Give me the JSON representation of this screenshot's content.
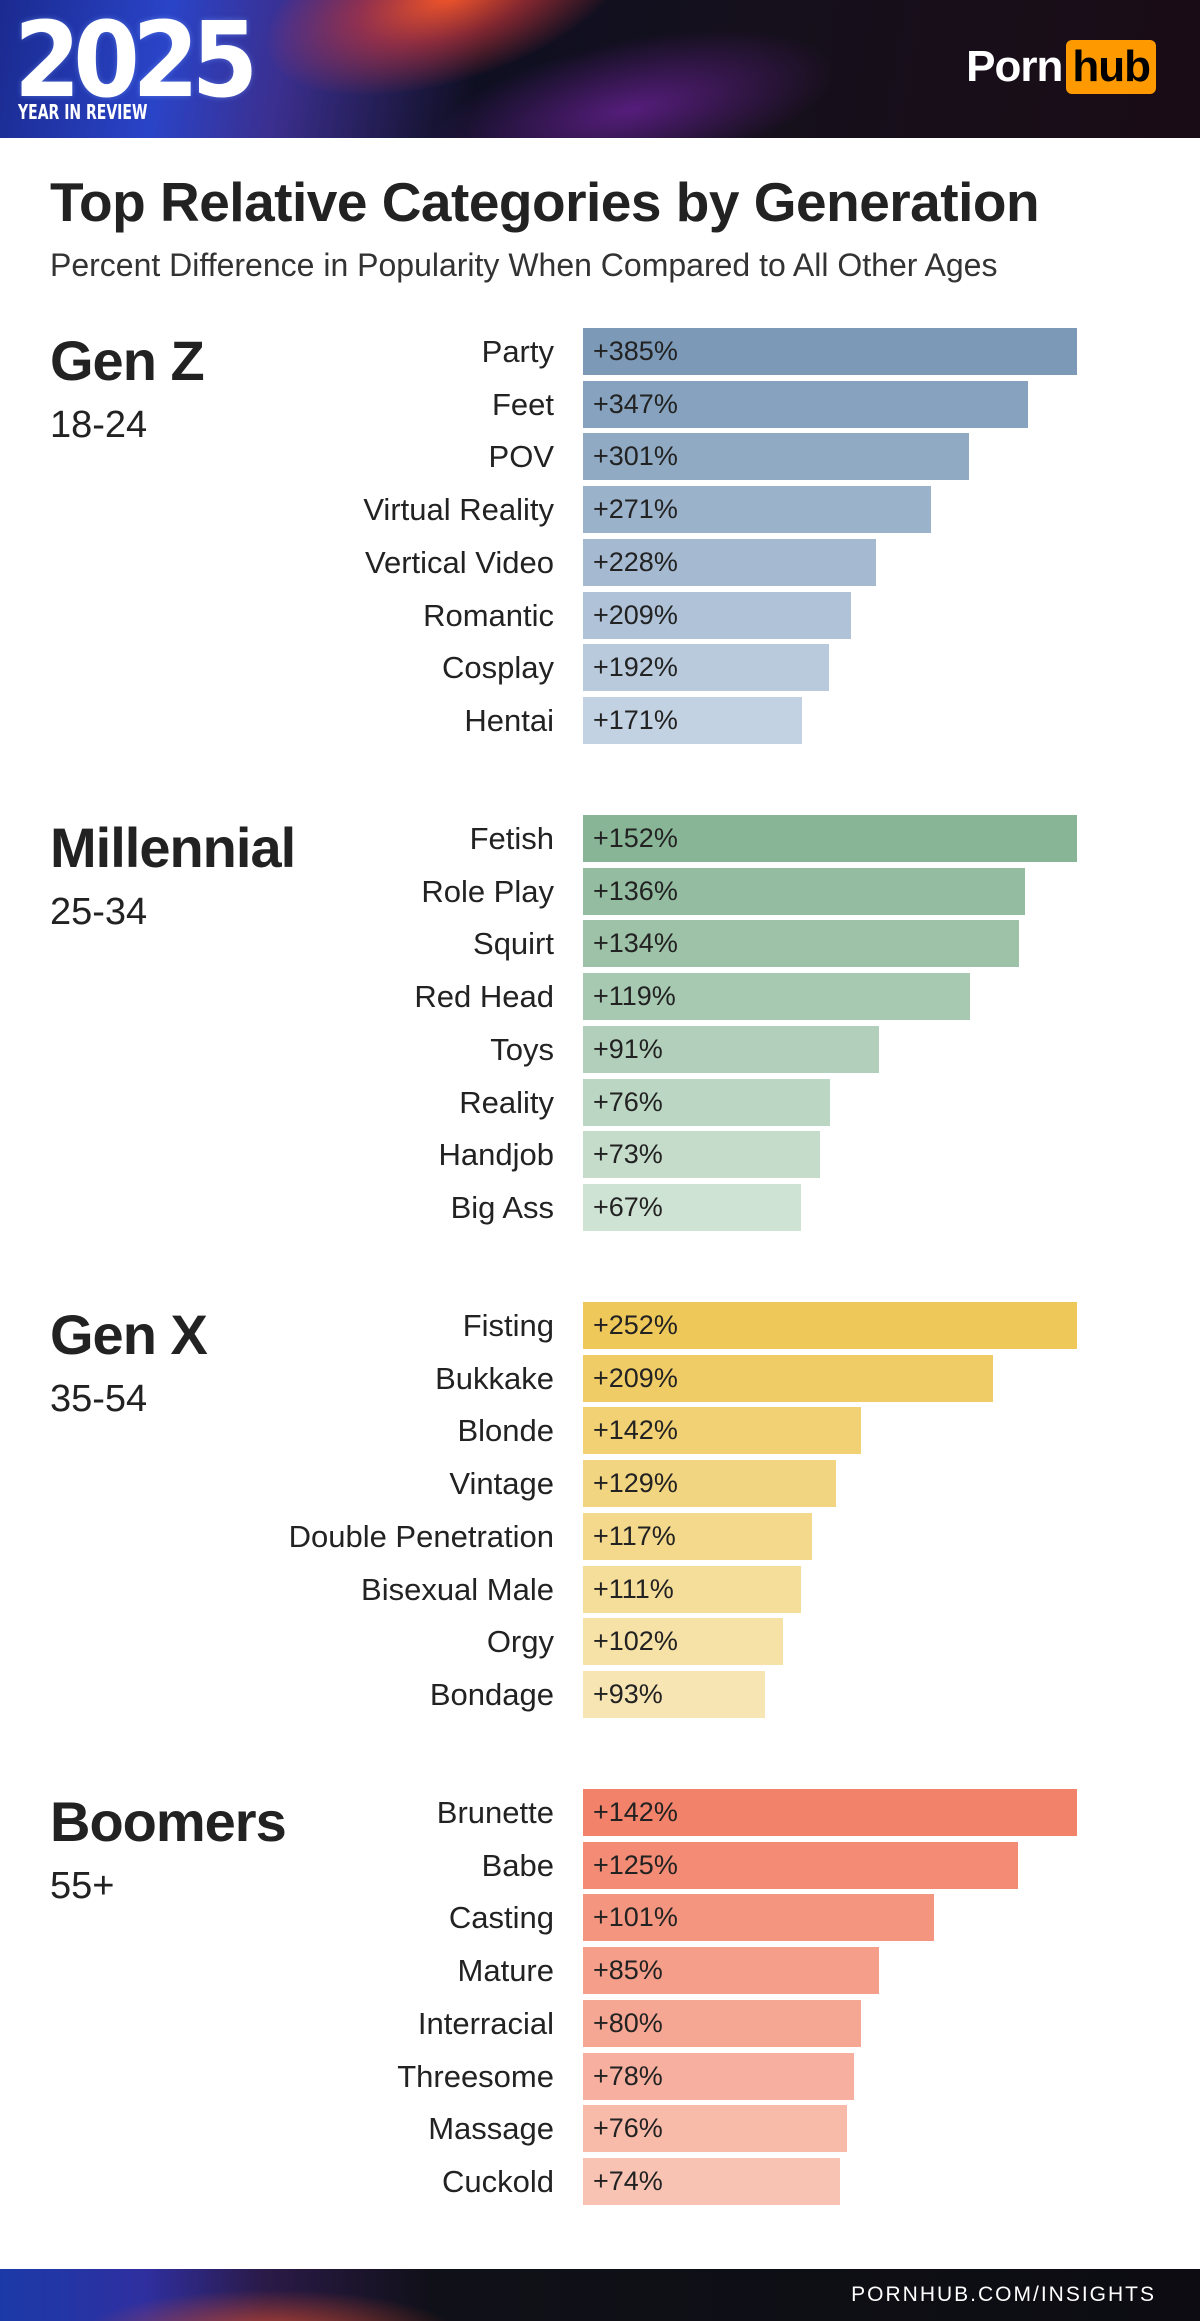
{
  "header": {
    "year": "2025",
    "year_subtitle": "YEAR IN REVIEW",
    "logo_part1": "Porn",
    "logo_part2": "hub"
  },
  "title": "Top Relative Categories by Generation",
  "subtitle": "Percent Difference in Popularity When Compared to All Other Ages",
  "footer": {
    "url": "PORNHUB.COM/INSIGHTS"
  },
  "colors": {
    "gen_z": [
      "#7c9ab8",
      "#c3d2e3"
    ],
    "millennial": [
      "#89b597",
      "#cfe3d4"
    ],
    "gen_x": [
      "#efc85a",
      "#f7e6b4"
    ],
    "boomers": [
      "#f2826a",
      "#f9c3b4"
    ],
    "logo_accent": "#ff9900"
  },
  "chart_data": [
    {
      "type": "bar",
      "orientation": "horizontal",
      "group": "Gen Z",
      "age": "18-24",
      "categories": [
        "Party",
        "Feet",
        "POV",
        "Virtual Reality",
        "Vertical Video",
        "Romantic",
        "Cosplay",
        "Hentai"
      ],
      "values": [
        385,
        347,
        301,
        271,
        228,
        209,
        192,
        171
      ],
      "labels": [
        "+385%",
        "+347%",
        "+301%",
        "+271%",
        "+228%",
        "+209%",
        "+192%",
        "+171%"
      ]
    },
    {
      "type": "bar",
      "orientation": "horizontal",
      "group": "Millennial",
      "age": "25-34",
      "categories": [
        "Fetish",
        "Role Play",
        "Squirt",
        "Red Head",
        "Toys",
        "Reality",
        "Handjob",
        "Big Ass"
      ],
      "values": [
        152,
        136,
        134,
        119,
        91,
        76,
        73,
        67
      ],
      "labels": [
        "+152%",
        "+136%",
        "+134%",
        "+119%",
        "+91%",
        "+76%",
        "+73%",
        "+67%"
      ]
    },
    {
      "type": "bar",
      "orientation": "horizontal",
      "group": "Gen X",
      "age": "35-54",
      "categories": [
        "Fisting",
        "Bukkake",
        "Blonde",
        "Vintage",
        "Double Penetration",
        "Bisexual Male",
        "Orgy",
        "Bondage"
      ],
      "values": [
        252,
        209,
        142,
        129,
        117,
        111,
        102,
        93
      ],
      "labels": [
        "+252%",
        "+209%",
        "+142%",
        "+129%",
        "+117%",
        "+111%",
        "+102%",
        "+93%"
      ]
    },
    {
      "type": "bar",
      "orientation": "horizontal",
      "group": "Boomers",
      "age": "55+",
      "categories": [
        "Brunette",
        "Babe",
        "Casting",
        "Mature",
        "Interracial",
        "Threesome",
        "Massage",
        "Cuckold"
      ],
      "values": [
        142,
        125,
        101,
        85,
        80,
        78,
        76,
        74
      ],
      "labels": [
        "+142%",
        "+125%",
        "+101%",
        "+85%",
        "+80%",
        "+78%",
        "+76%",
        "+74%"
      ]
    }
  ]
}
